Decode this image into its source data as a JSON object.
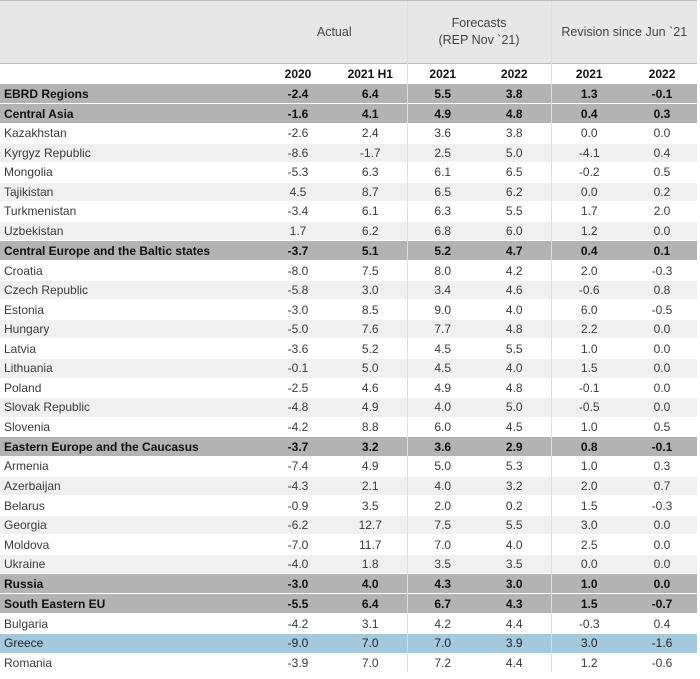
{
  "header": {
    "actual": "Actual",
    "forecasts_line1": "Forecasts",
    "forecasts_line2": "(REP Nov `21)",
    "revision": "Revision since Jun `21"
  },
  "years": [
    "2020",
    "2021 H1",
    "2021",
    "2022",
    "2021",
    "2022"
  ],
  "rows": [
    {
      "label": "EBRD Regions",
      "type": "group",
      "values": [
        "-2.4",
        "6.4",
        "5.5",
        "3.8",
        "1.3",
        "-0.1"
      ]
    },
    {
      "label": "Central Asia",
      "type": "group",
      "values": [
        "-1.6",
        "4.1",
        "4.9",
        "4.8",
        "0.4",
        "0.3"
      ]
    },
    {
      "label": "Kazakhstan",
      "type": "row",
      "values": [
        "-2.6",
        "2.4",
        "3.6",
        "3.8",
        "0.0",
        "0.0"
      ]
    },
    {
      "label": "Kyrgyz Republic",
      "type": "row",
      "values": [
        "-8.6",
        "-1.7",
        "2.5",
        "5.0",
        "-4.1",
        "0.4"
      ]
    },
    {
      "label": "Mongolia",
      "type": "row",
      "values": [
        "-5.3",
        "6.3",
        "6.1",
        "6.5",
        "-0.2",
        "0.5"
      ]
    },
    {
      "label": "Tajikistan",
      "type": "row",
      "values": [
        "4.5",
        "8.7",
        "6.5",
        "6.2",
        "0.0",
        "0.2"
      ]
    },
    {
      "label": "Turkmenistan",
      "type": "row",
      "values": [
        "-3.4",
        "6.1",
        "6.3",
        "5.5",
        "1.7",
        "2.0"
      ]
    },
    {
      "label": "Uzbekistan",
      "type": "row",
      "values": [
        "1.7",
        "6.2",
        "6.8",
        "6.0",
        "1.2",
        "0.0"
      ]
    },
    {
      "label": "Central Europe and the Baltic states",
      "type": "group",
      "values": [
        "-3.7",
        "5.1",
        "5.2",
        "4.7",
        "0.4",
        "0.1"
      ]
    },
    {
      "label": "Croatia",
      "type": "row",
      "values": [
        "-8.0",
        "7.5",
        "8.0",
        "4.2",
        "2.0",
        "-0.3"
      ]
    },
    {
      "label": "Czech Republic",
      "type": "row",
      "values": [
        "-5.8",
        "3.0",
        "3.4",
        "4.6",
        "-0.6",
        "0.8"
      ]
    },
    {
      "label": "Estonia",
      "type": "row",
      "values": [
        "-3.0",
        "8.5",
        "9.0",
        "4.0",
        "6.0",
        "-0.5"
      ]
    },
    {
      "label": "Hungary",
      "type": "row",
      "values": [
        "-5.0",
        "7.6",
        "7.7",
        "4.8",
        "2.2",
        "0.0"
      ]
    },
    {
      "label": "Latvia",
      "type": "row",
      "values": [
        "-3.6",
        "5.2",
        "4.5",
        "5.5",
        "1.0",
        "0.0"
      ]
    },
    {
      "label": "Lithuania",
      "type": "row",
      "values": [
        "-0.1",
        "5.0",
        "4.5",
        "4.0",
        "1.5",
        "0.0"
      ]
    },
    {
      "label": "Poland",
      "type": "row",
      "values": [
        "-2.5",
        "4.6",
        "4.9",
        "4.8",
        "-0.1",
        "0.0"
      ]
    },
    {
      "label": "Slovak Republic",
      "type": "row",
      "values": [
        "-4.8",
        "4.9",
        "4.0",
        "5.0",
        "-0.5",
        "0.0"
      ]
    },
    {
      "label": "Slovenia",
      "type": "row",
      "values": [
        "-4.2",
        "8.8",
        "6.0",
        "4.5",
        "1.0",
        "0.5"
      ]
    },
    {
      "label": "Eastern Europe and the Caucasus",
      "type": "group",
      "values": [
        "-3.7",
        "3.2",
        "3.6",
        "2.9",
        "0.8",
        "-0.1"
      ]
    },
    {
      "label": "Armenia",
      "type": "row",
      "values": [
        "-7.4",
        "4.9",
        "5.0",
        "5.3",
        "1.0",
        "0.3"
      ]
    },
    {
      "label": "Azerbaijan",
      "type": "row",
      "values": [
        "-4.3",
        "2.1",
        "4.0",
        "3.2",
        "2.0",
        "0.7"
      ]
    },
    {
      "label": "Belarus",
      "type": "row",
      "values": [
        "-0.9",
        "3.5",
        "2.0",
        "0.2",
        "1.5",
        "-0.3"
      ]
    },
    {
      "label": "Georgia",
      "type": "row",
      "values": [
        "-6.2",
        "12.7",
        "7.5",
        "5.5",
        "3.0",
        "0.0"
      ]
    },
    {
      "label": "Moldova",
      "type": "row",
      "values": [
        "-7.0",
        "11.7",
        "7.0",
        "4.0",
        "2.5",
        "0.0"
      ]
    },
    {
      "label": "Ukraine",
      "type": "row",
      "values": [
        "-4.0",
        "1.8",
        "3.5",
        "3.5",
        "0.0",
        "0.0"
      ]
    },
    {
      "label": "Russia",
      "type": "group-gap",
      "values": [
        "-3.0",
        "4.0",
        "4.3",
        "3.0",
        "1.0",
        "0.0"
      ]
    },
    {
      "label": "South Eastern EU",
      "type": "group",
      "values": [
        "-5.5",
        "6.4",
        "6.7",
        "4.3",
        "1.5",
        "-0.7"
      ]
    },
    {
      "label": "Bulgaria",
      "type": "row",
      "values": [
        "-4.2",
        "3.1",
        "4.2",
        "4.4",
        "-0.3",
        "0.4"
      ]
    },
    {
      "label": "Greece",
      "type": "highlight",
      "values": [
        "-9.0",
        "7.0",
        "7.0",
        "3.9",
        "3.0",
        "-1.6"
      ]
    },
    {
      "label": "Romania",
      "type": "row",
      "values": [
        "-3.9",
        "7.0",
        "7.2",
        "4.4",
        "1.2",
        "-0.6"
      ]
    }
  ]
}
